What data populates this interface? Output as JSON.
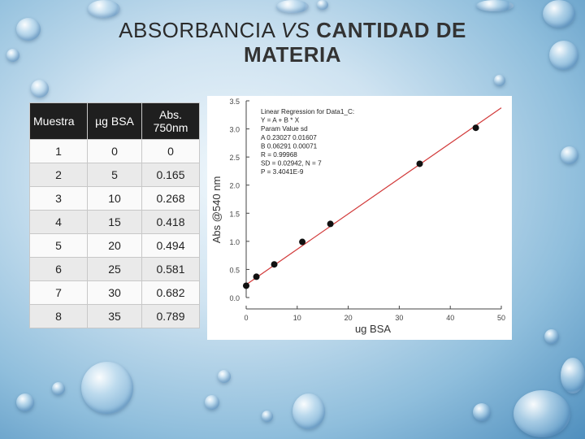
{
  "slide": {
    "title_part1": "ABSORBANCIA",
    "title_part2": "VS",
    "title_part3": "CANTIDAD DE MATERIA"
  },
  "table": {
    "headers": [
      "Muestra",
      "µg BSA",
      "Abs. 750nm"
    ],
    "rows": [
      [
        "1",
        "0",
        "0"
      ],
      [
        "2",
        "5",
        "0.165"
      ],
      [
        "3",
        "10",
        "0.268"
      ],
      [
        "4",
        "15",
        "0.418"
      ],
      [
        "5",
        "20",
        "0.494"
      ],
      [
        "6",
        "25",
        "0.581"
      ],
      [
        "7",
        "30",
        "0.682"
      ],
      [
        "8",
        "35",
        "0.789"
      ]
    ]
  },
  "chart_data": {
    "type": "scatter",
    "xlabel": "ug BSA",
    "ylabel": "Abs @540 nm",
    "xlim": [
      0,
      50
    ],
    "ylim": [
      0.0,
      3.5
    ],
    "xticks": [
      "0",
      "10",
      "20",
      "30",
      "40",
      "50"
    ],
    "yticks": [
      "0.0",
      "0.5",
      "1.0",
      "1.5",
      "2.0",
      "2.5",
      "3.0",
      "3.5"
    ],
    "points": [
      {
        "x": 0,
        "y": 0.21
      },
      {
        "x": 2,
        "y": 0.37
      },
      {
        "x": 5.5,
        "y": 0.59
      },
      {
        "x": 11,
        "y": 0.99
      },
      {
        "x": 16.5,
        "y": 1.31
      },
      {
        "x": 34,
        "y": 2.38
      },
      {
        "x": 45,
        "y": 3.02
      }
    ],
    "fit_line": {
      "intercept": 0.23027,
      "slope": 0.06291
    },
    "fit_color": "#d23a3a",
    "annotation": [
      "Linear Regression for Data1_C:",
      "Y = A + B * X",
      "Param  Value  sd",
      "A  0.23027  0.01607",
      "B  0.06291  0.00071",
      "R  = 0.99968",
      "SD = 0.02942, N = 7",
      "P = 3.4041E-9"
    ]
  }
}
